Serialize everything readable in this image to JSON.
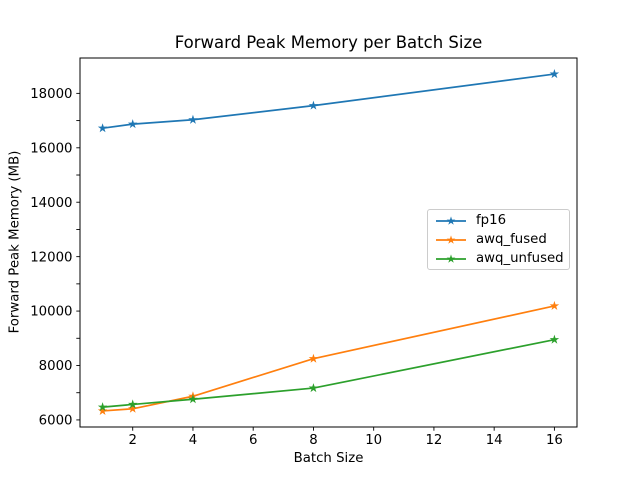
{
  "chart_data": {
    "type": "line",
    "title": "Forward Peak Memory per Batch Size",
    "xlabel": "Batch Size",
    "ylabel": "Forward Peak Memory (MB)",
    "x": [
      1,
      2,
      4,
      8,
      16
    ],
    "series": [
      {
        "name": "fp16",
        "color": "#1f77b4",
        "marker": "star",
        "values": [
          16720,
          16870,
          17030,
          17550,
          18710
        ]
      },
      {
        "name": "awq_fused",
        "color": "#ff7f0e",
        "marker": "star",
        "values": [
          6330,
          6410,
          6870,
          8250,
          10190
        ]
      },
      {
        "name": "awq_unfused",
        "color": "#2ca02c",
        "marker": "star",
        "values": [
          6470,
          6570,
          6760,
          7170,
          8950
        ]
      }
    ],
    "xticks": [
      2,
      4,
      6,
      8,
      10,
      12,
      14,
      16
    ],
    "yticks_labeled": [
      6000,
      8000,
      10000,
      12000,
      14000,
      16000,
      18000
    ],
    "yticks_minor": [
      7000,
      9000,
      11000,
      13000,
      15000,
      17000
    ],
    "xlim": [
      0.25,
      16.75
    ],
    "ylim": [
      5740,
      19300
    ],
    "grid": false,
    "legend_position": "center right",
    "axis_color": "#000000",
    "text_color": "#000000",
    "background_color": "#ffffff"
  }
}
